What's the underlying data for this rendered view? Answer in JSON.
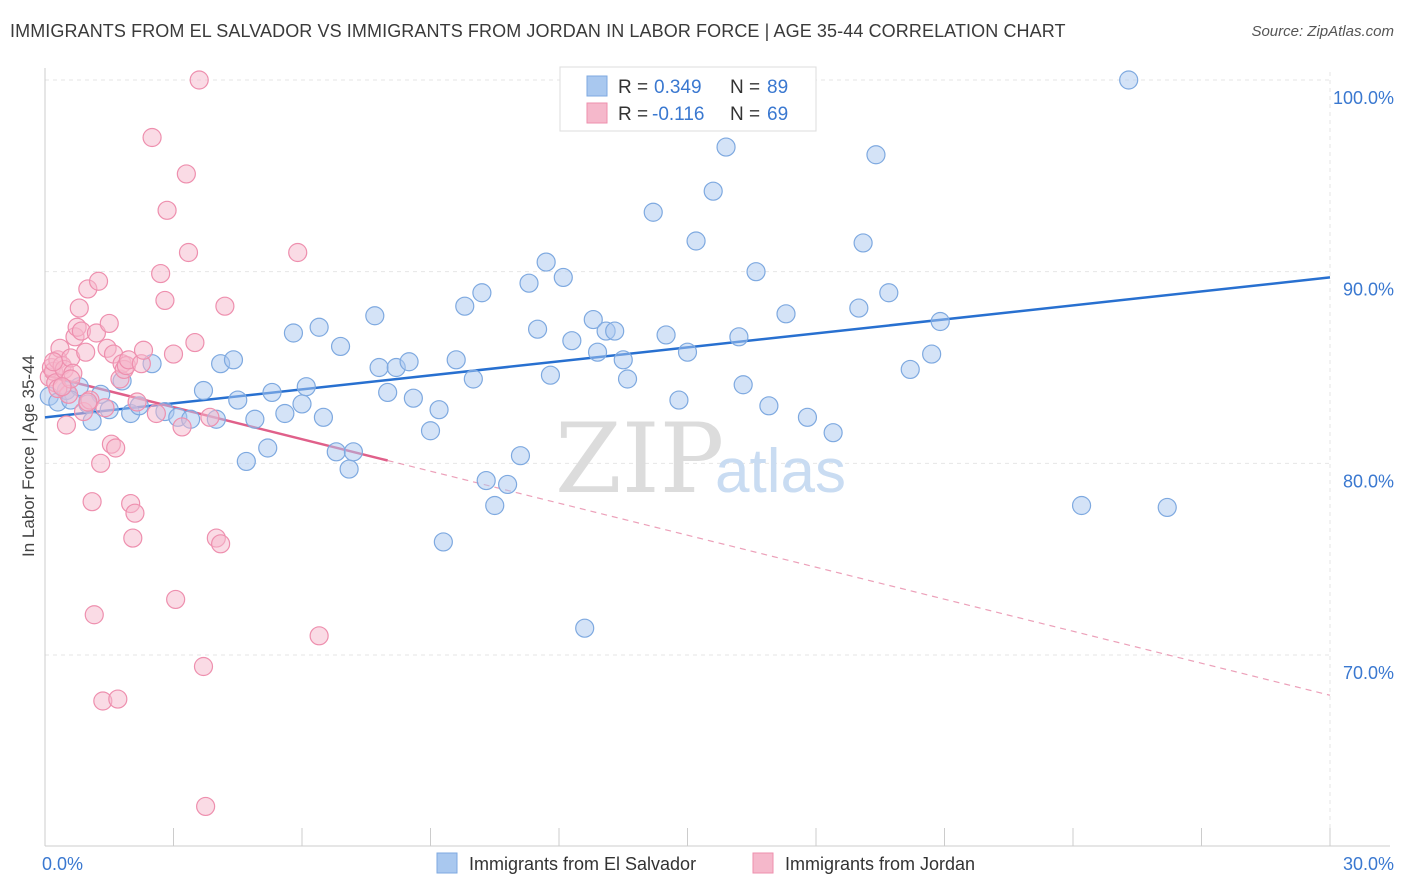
{
  "title": "IMMIGRANTS FROM EL SALVADOR VS IMMIGRANTS FROM JORDAN IN LABOR FORCE | AGE 35-44 CORRELATION CHART",
  "source": "Source: ZipAtlas.com",
  "watermark": {
    "zip": "ZIP",
    "atlas": "atlas"
  },
  "colors": {
    "blue_fill": "#a9c8ef",
    "blue_stroke": "#7ea9e0",
    "blue_line": "#2870d0",
    "pink_fill": "#f5b8cb",
    "pink_stroke": "#ee8fae",
    "pink_line": "#e0608a",
    "axis_text_blue": "#3a78d0",
    "grid": "#e6e6e6"
  },
  "legend_top": [
    {
      "r_label": "R =",
      "r_value": "0.349",
      "n_label": "N =",
      "n_value": "89",
      "color": "blue"
    },
    {
      "r_label": "R =",
      "r_value": "-0.116",
      "n_label": "N =",
      "n_value": "69",
      "color": "pink"
    }
  ],
  "chart_data": {
    "type": "scatter",
    "title": "IMMIGRANTS FROM EL SALVADOR VS IMMIGRANTS FROM JORDAN IN LABOR FORCE | AGE 35-44 CORRELATION CHART",
    "xlabel": "",
    "ylabel": "In Labor Force | Age 35-44",
    "xlim": [
      0,
      30
    ],
    "ylim": [
      60,
      100
    ],
    "x_tick_labels": [
      "0.0%",
      "30.0%"
    ],
    "y_ticks": [
      70,
      80,
      90,
      100
    ],
    "y_tick_labels": [
      "70.0%",
      "80.0%",
      "90.0%",
      "100.0%"
    ],
    "grid": true,
    "legend_position": "bottom",
    "series": [
      {
        "name": "Immigrants from El Salvador",
        "color": "blue",
        "trend": {
          "x": [
            0,
            30
          ],
          "y": [
            82.4,
            89.7
          ],
          "dashed_from": null
        },
        "points": [
          [
            0.1,
            83.5
          ],
          [
            0.3,
            83.2
          ],
          [
            0.5,
            83.8
          ],
          [
            0.8,
            84.0
          ],
          [
            0.6,
            83.3
          ],
          [
            1.1,
            82.2
          ],
          [
            1.3,
            83.6
          ],
          [
            1.5,
            82.8
          ],
          [
            1.8,
            84.3
          ],
          [
            2.0,
            82.6
          ],
          [
            2.2,
            83.0
          ],
          [
            2.8,
            82.7
          ],
          [
            3.1,
            82.4
          ],
          [
            3.7,
            83.8
          ],
          [
            4.0,
            82.3
          ],
          [
            4.1,
            85.2
          ],
          [
            4.4,
            85.4
          ],
          [
            4.5,
            83.3
          ],
          [
            4.7,
            80.1
          ],
          [
            4.9,
            82.3
          ],
          [
            5.2,
            80.8
          ],
          [
            5.3,
            83.7
          ],
          [
            5.6,
            82.6
          ],
          [
            5.8,
            86.8
          ],
          [
            6.0,
            83.1
          ],
          [
            6.1,
            84.0
          ],
          [
            6.4,
            87.1
          ],
          [
            6.5,
            82.4
          ],
          [
            6.8,
            80.6
          ],
          [
            6.9,
            86.1
          ],
          [
            7.1,
            79.7
          ],
          [
            7.2,
            80.6
          ],
          [
            7.7,
            87.7
          ],
          [
            7.8,
            85.0
          ],
          [
            8.0,
            83.7
          ],
          [
            8.2,
            85.0
          ],
          [
            8.5,
            85.3
          ],
          [
            8.6,
            83.4
          ],
          [
            9.0,
            81.7
          ],
          [
            9.2,
            82.8
          ],
          [
            9.6,
            85.4
          ],
          [
            9.8,
            88.2
          ],
          [
            10.0,
            84.4
          ],
          [
            10.2,
            88.9
          ],
          [
            10.3,
            79.1
          ],
          [
            10.5,
            77.8
          ],
          [
            10.8,
            78.9
          ],
          [
            11.1,
            80.4
          ],
          [
            11.3,
            89.4
          ],
          [
            11.5,
            87.0
          ],
          [
            11.7,
            90.5
          ],
          [
            11.8,
            84.6
          ],
          [
            12.1,
            89.7
          ],
          [
            12.3,
            86.4
          ],
          [
            12.6,
            71.4
          ],
          [
            12.8,
            87.5
          ],
          [
            12.9,
            85.8
          ],
          [
            13.1,
            86.9
          ],
          [
            13.3,
            86.9
          ],
          [
            13.5,
            85.4
          ],
          [
            13.6,
            84.4
          ],
          [
            14.2,
            93.1
          ],
          [
            14.5,
            86.7
          ],
          [
            14.8,
            83.3
          ],
          [
            15.0,
            85.8
          ],
          [
            15.2,
            91.6
          ],
          [
            15.6,
            94.2
          ],
          [
            15.9,
            96.5
          ],
          [
            16.2,
            86.6
          ],
          [
            16.3,
            84.1
          ],
          [
            16.6,
            90.0
          ],
          [
            16.9,
            83.0
          ],
          [
            17.3,
            87.8
          ],
          [
            17.8,
            82.4
          ],
          [
            18.4,
            81.6
          ],
          [
            19.0,
            88.1
          ],
          [
            19.1,
            91.5
          ],
          [
            19.4,
            96.1
          ],
          [
            19.7,
            88.9
          ],
          [
            20.2,
            84.9
          ],
          [
            20.7,
            85.7
          ],
          [
            20.9,
            87.4
          ],
          [
            24.2,
            77.8
          ],
          [
            25.3,
            100.0
          ],
          [
            26.2,
            77.7
          ],
          [
            9.3,
            75.9
          ],
          [
            3.4,
            82.3
          ],
          [
            2.5,
            85.2
          ],
          [
            1.0,
            83.1
          ]
        ]
      },
      {
        "name": "Immigrants from Jordan",
        "color": "pink",
        "trend": {
          "x": [
            0,
            30
          ],
          "y": [
            84.6,
            67.9
          ],
          "dashed_from": 8
        },
        "points": [
          [
            0.1,
            84.5
          ],
          [
            0.15,
            85.0
          ],
          [
            0.2,
            84.8
          ],
          [
            0.25,
            84.2
          ],
          [
            0.3,
            85.4
          ],
          [
            0.35,
            86.0
          ],
          [
            0.4,
            85.1
          ],
          [
            0.45,
            84.9
          ],
          [
            0.5,
            82.0
          ],
          [
            0.55,
            83.6
          ],
          [
            0.6,
            85.5
          ],
          [
            0.65,
            84.7
          ],
          [
            0.7,
            86.6
          ],
          [
            0.75,
            87.1
          ],
          [
            0.8,
            88.1
          ],
          [
            0.85,
            86.9
          ],
          [
            0.9,
            82.7
          ],
          [
            0.95,
            85.8
          ],
          [
            1.0,
            89.1
          ],
          [
            1.05,
            83.3
          ],
          [
            1.1,
            78.0
          ],
          [
            1.15,
            72.1
          ],
          [
            1.2,
            86.8
          ],
          [
            1.25,
            89.5
          ],
          [
            1.3,
            80.0
          ],
          [
            1.35,
            67.6
          ],
          [
            1.4,
            82.9
          ],
          [
            1.45,
            86.0
          ],
          [
            1.5,
            87.3
          ],
          [
            1.55,
            81.0
          ],
          [
            1.6,
            85.7
          ],
          [
            1.65,
            80.8
          ],
          [
            1.7,
            67.7
          ],
          [
            1.75,
            84.4
          ],
          [
            1.8,
            85.2
          ],
          [
            1.85,
            84.9
          ],
          [
            1.9,
            85.1
          ],
          [
            1.95,
            85.4
          ],
          [
            2.0,
            77.9
          ],
          [
            2.05,
            76.1
          ],
          [
            2.1,
            77.4
          ],
          [
            2.15,
            83.2
          ],
          [
            2.25,
            85.2
          ],
          [
            2.3,
            85.9
          ],
          [
            2.5,
            97.0
          ],
          [
            2.7,
            89.9
          ],
          [
            2.8,
            88.5
          ],
          [
            2.85,
            93.2
          ],
          [
            3.0,
            85.7
          ],
          [
            3.05,
            72.9
          ],
          [
            3.2,
            81.9
          ],
          [
            3.3,
            95.1
          ],
          [
            3.35,
            91.0
          ],
          [
            3.5,
            86.3
          ],
          [
            3.6,
            100.0
          ],
          [
            3.7,
            69.4
          ],
          [
            3.75,
            62.1
          ],
          [
            3.85,
            82.4
          ],
          [
            4.0,
            76.1
          ],
          [
            4.1,
            75.8
          ],
          [
            4.2,
            88.2
          ],
          [
            5.9,
            91.0
          ],
          [
            6.4,
            71.0
          ],
          [
            0.3,
            83.9
          ],
          [
            0.6,
            84.4
          ],
          [
            0.2,
            85.3
          ],
          [
            1.0,
            83.2
          ],
          [
            0.4,
            84.0
          ],
          [
            2.6,
            82.6
          ]
        ]
      }
    ]
  },
  "legend_bottom": [
    "Immigrants from El Salvador",
    "Immigrants from Jordan"
  ]
}
